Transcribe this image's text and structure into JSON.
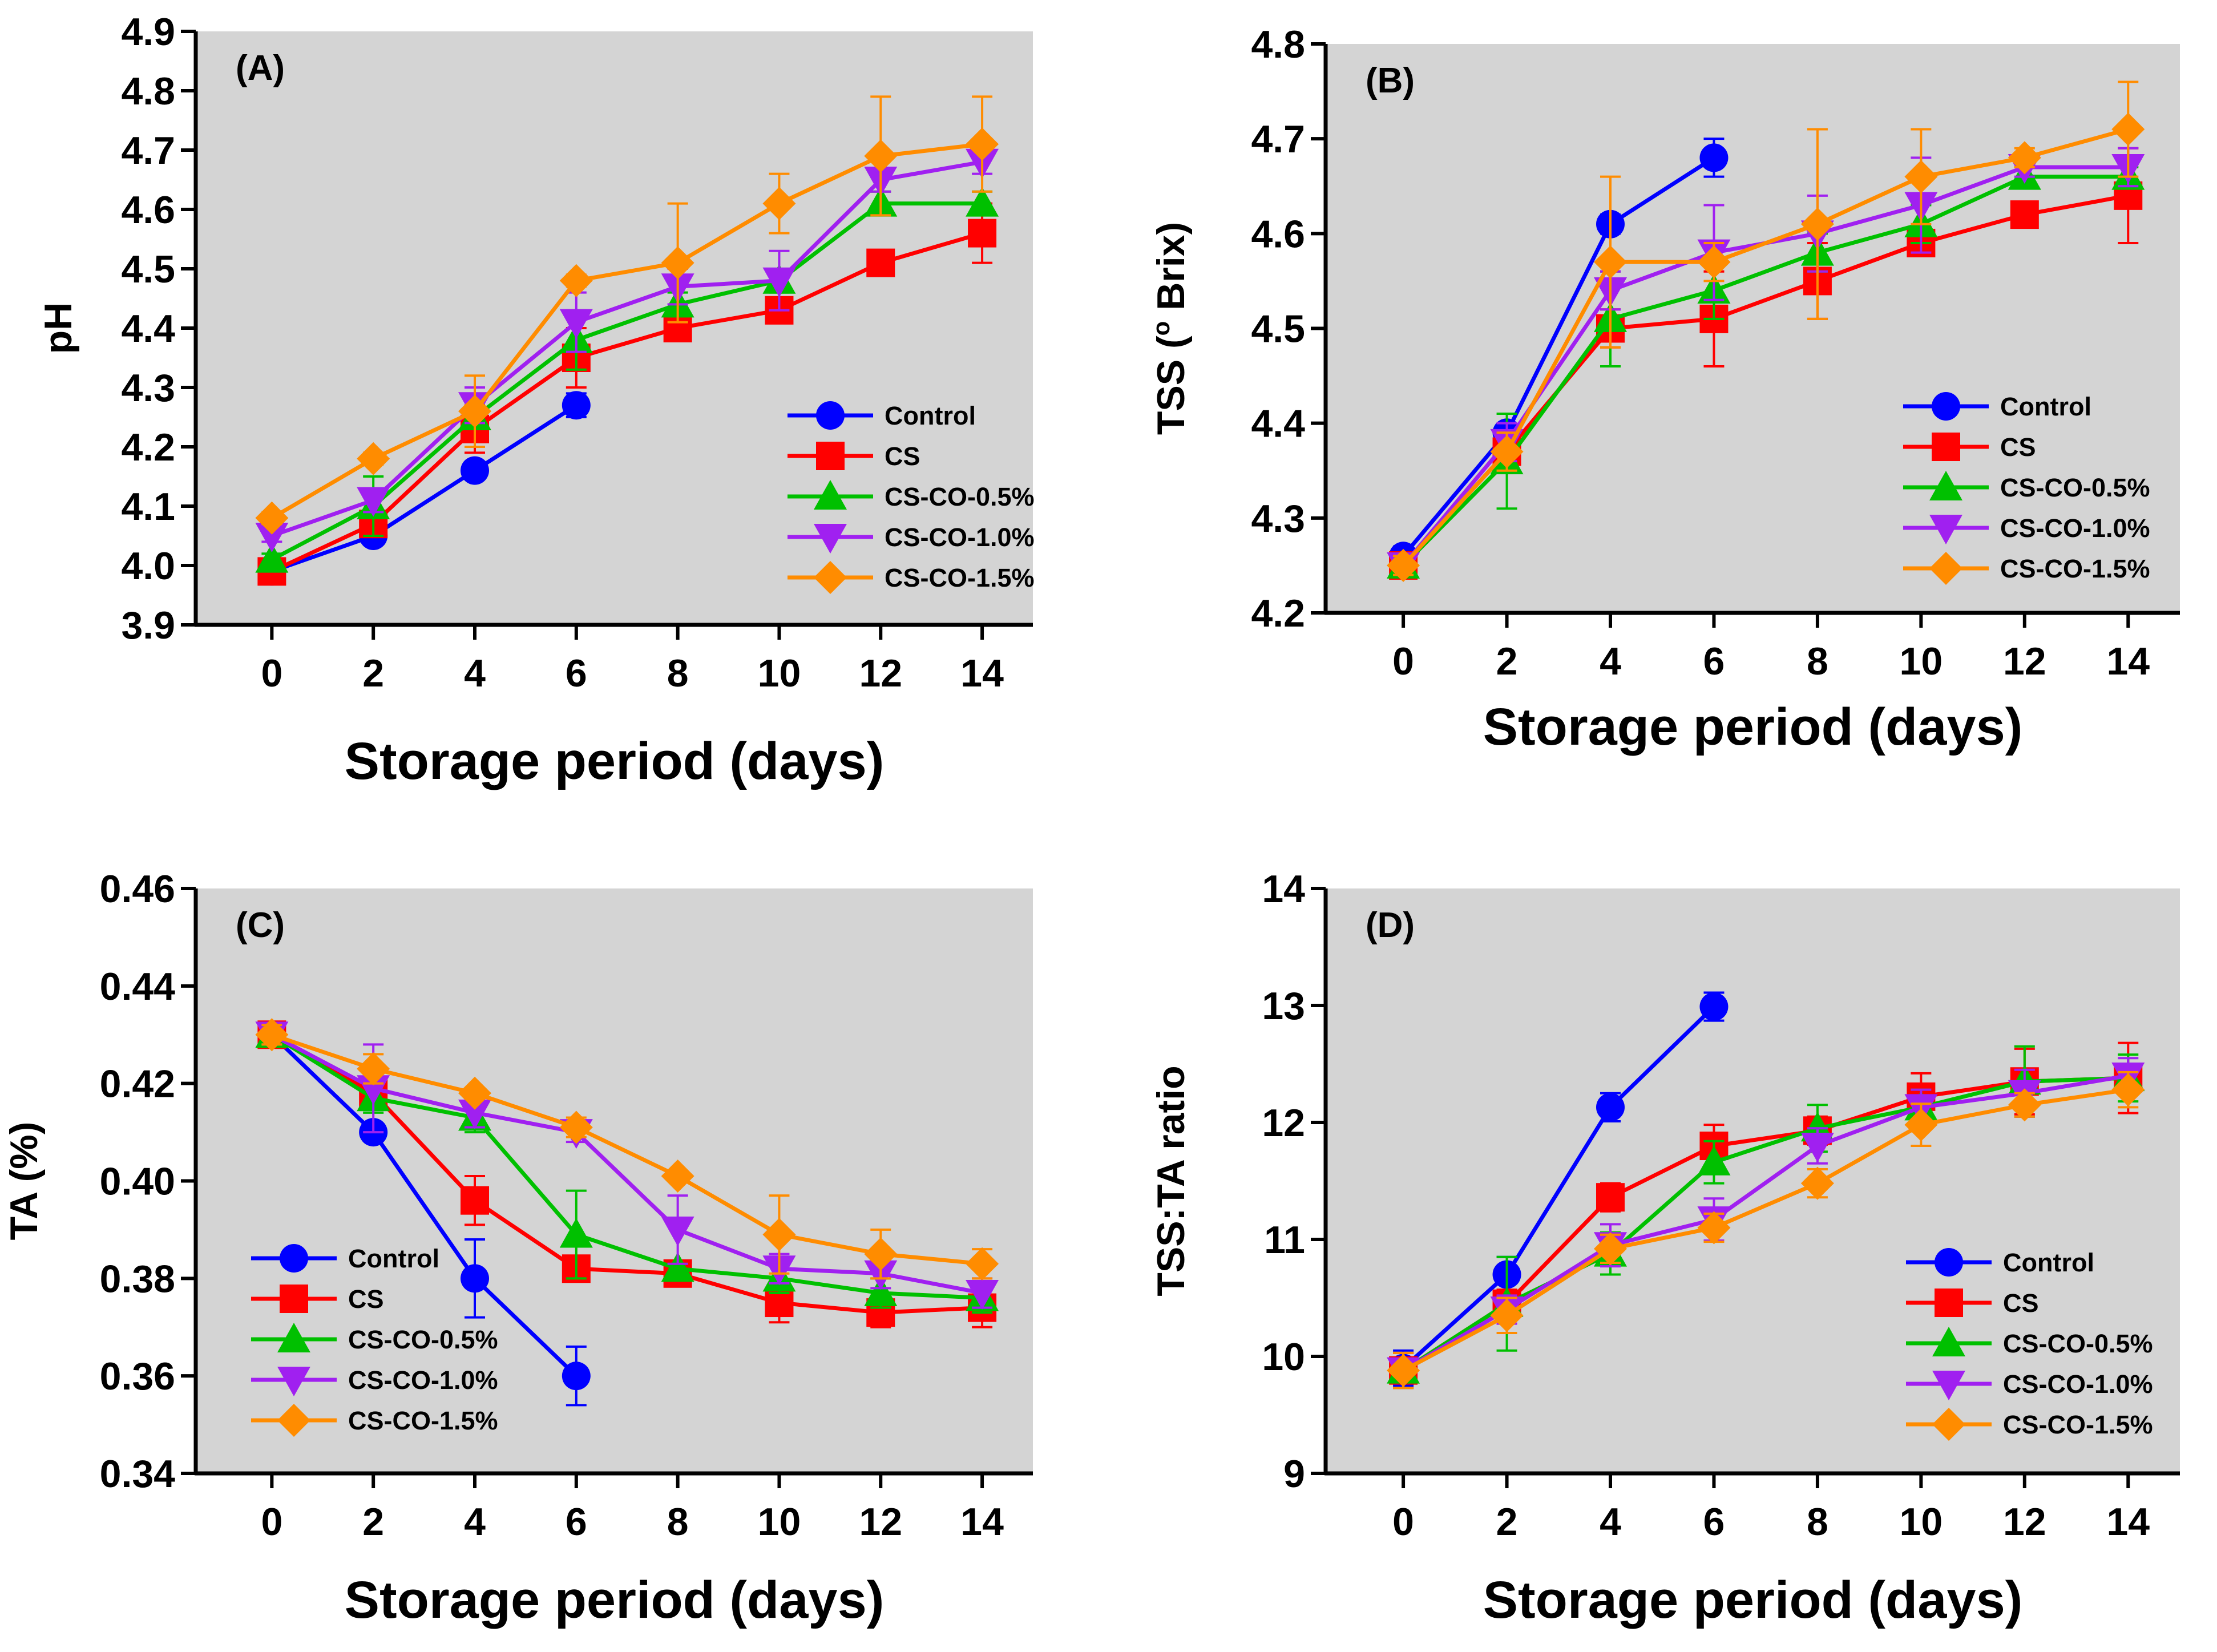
{
  "figure_title": "",
  "chart_data": [
    {
      "type": "line",
      "panel_label": "(A)",
      "title": "",
      "xlabel": "Storage period (days)",
      "ylabel": "pH",
      "ylabel_sup": "",
      "ylabel_suffix": "",
      "xlim": [
        -1.5,
        15
      ],
      "ylim": [
        3.9,
        4.9
      ],
      "xticks": [
        0,
        2,
        4,
        6,
        8,
        10,
        12,
        14
      ],
      "xtick_labels": [
        "0",
        "2",
        "4",
        "6",
        "8",
        "10",
        "12",
        "14"
      ],
      "yticks": [
        3.9,
        4.0,
        4.1,
        4.2,
        4.3,
        4.4,
        4.5,
        4.6,
        4.7,
        4.8,
        4.9
      ],
      "ytick_labels": [
        "3.9",
        "4.0",
        "4.1",
        "4.2",
        "4.3",
        "4.4",
        "4.5",
        "4.6",
        "4.7",
        "4.8",
        "4.9"
      ],
      "grid": false,
      "background": "#d4d4d4",
      "legend_position": "lower-right",
      "series": [
        {
          "name": "Control",
          "color": "#0000ff",
          "marker": "circle",
          "x": [
            0,
            2,
            4,
            6
          ],
          "values": [
            3.99,
            4.05,
            4.16,
            4.27
          ],
          "errors": [
            0.01,
            0.01,
            0.01,
            0.02
          ]
        },
        {
          "name": "CS",
          "color": "#ff0000",
          "marker": "square",
          "x": [
            0,
            2,
            4,
            6,
            8,
            10,
            12,
            14
          ],
          "values": [
            3.99,
            4.07,
            4.23,
            4.35,
            4.4,
            4.43,
            4.51,
            4.56
          ],
          "errors": [
            0.01,
            0.02,
            0.04,
            0.05,
            0.01,
            0.01,
            0.01,
            0.05
          ]
        },
        {
          "name": "CS-CO-0.5%",
          "color": "#00c000",
          "marker": "triangle-up",
          "x": [
            0,
            2,
            4,
            6,
            8,
            10,
            12,
            14
          ],
          "values": [
            4.01,
            4.1,
            4.25,
            4.38,
            4.44,
            4.48,
            4.61,
            4.61
          ],
          "errors": [
            0.01,
            0.05,
            0.05,
            0.05,
            0.02,
            0.02,
            0.02,
            0.02
          ]
        },
        {
          "name": "CS-CO-1.0%",
          "color": "#a020f0",
          "marker": "triangle-down",
          "x": [
            0,
            2,
            4,
            6,
            8,
            10,
            12,
            14
          ],
          "values": [
            4.05,
            4.11,
            4.27,
            4.41,
            4.47,
            4.48,
            4.65,
            4.68
          ],
          "errors": [
            0.01,
            0.02,
            0.03,
            0.05,
            0.03,
            0.05,
            0.02,
            0.02
          ]
        },
        {
          "name": "CS-CO-1.5%",
          "color": "#ff8c00",
          "marker": "diamond",
          "x": [
            0,
            2,
            4,
            6,
            8,
            10,
            12,
            14
          ],
          "values": [
            4.08,
            4.18,
            4.26,
            4.48,
            4.51,
            4.61,
            4.69,
            4.71
          ],
          "errors": [
            0.01,
            0.01,
            0.06,
            0.01,
            0.1,
            0.05,
            0.1,
            0.08
          ]
        }
      ]
    },
    {
      "type": "line",
      "panel_label": "(B)",
      "title": "",
      "xlabel": "Storage period (days)",
      "ylabel": "TSS (",
      "ylabel_sup": "o",
      "ylabel_suffix": " Brix)",
      "xlim": [
        -1.5,
        15
      ],
      "ylim": [
        4.2,
        4.8
      ],
      "xticks": [
        0,
        2,
        4,
        6,
        8,
        10,
        12,
        14
      ],
      "xtick_labels": [
        "0",
        "2",
        "4",
        "6",
        "8",
        "10",
        "12",
        "14"
      ],
      "yticks": [
        4.2,
        4.3,
        4.4,
        4.5,
        4.6,
        4.7,
        4.8
      ],
      "ytick_labels": [
        "4.2",
        "4.3",
        "4.4",
        "4.5",
        "4.6",
        "4.7",
        "4.8"
      ],
      "grid": false,
      "background": "#d4d4d4",
      "legend_position": "lower-right",
      "series": [
        {
          "name": "Control",
          "color": "#0000ff",
          "marker": "circle",
          "x": [
            0,
            2,
            4,
            6
          ],
          "values": [
            4.26,
            4.39,
            4.61,
            4.68
          ],
          "errors": [
            0.01,
            0.01,
            0.01,
            0.02
          ]
        },
        {
          "name": "CS",
          "color": "#ff0000",
          "marker": "square",
          "x": [
            0,
            2,
            4,
            6,
            8,
            10,
            12,
            14
          ],
          "values": [
            4.25,
            4.37,
            4.5,
            4.51,
            4.55,
            4.59,
            4.62,
            4.64
          ],
          "errors": [
            0.01,
            0.02,
            0.02,
            0.05,
            0.04,
            0.01,
            0.01,
            0.05
          ]
        },
        {
          "name": "CS-CO-0.5%",
          "color": "#00c000",
          "marker": "triangle-up",
          "x": [
            0,
            2,
            4,
            6,
            8,
            10,
            12,
            14
          ],
          "values": [
            4.25,
            4.36,
            4.51,
            4.54,
            4.58,
            4.61,
            4.66,
            4.66
          ],
          "errors": [
            0.01,
            0.05,
            0.05,
            0.03,
            0.02,
            0.02,
            0.01,
            0.01
          ]
        },
        {
          "name": "CS-CO-1.0%",
          "color": "#a020f0",
          "marker": "triangle-down",
          "x": [
            0,
            2,
            4,
            6,
            8,
            10,
            12,
            14
          ],
          "values": [
            4.25,
            4.38,
            4.54,
            4.58,
            4.6,
            4.63,
            4.67,
            4.67
          ],
          "errors": [
            0.01,
            0.02,
            0.02,
            0.05,
            0.04,
            0.05,
            0.01,
            0.02
          ]
        },
        {
          "name": "CS-CO-1.5%",
          "color": "#ff8c00",
          "marker": "diamond",
          "x": [
            0,
            2,
            4,
            6,
            8,
            10,
            12,
            14
          ],
          "values": [
            4.25,
            4.37,
            4.57,
            4.57,
            4.61,
            4.66,
            4.68,
            4.71
          ],
          "errors": [
            0.01,
            0.02,
            0.09,
            0.02,
            0.1,
            0.05,
            0.01,
            0.05
          ]
        }
      ]
    },
    {
      "type": "line",
      "panel_label": "(C)",
      "title": "",
      "xlabel": "Storage period (days)",
      "ylabel": "TA (%)",
      "ylabel_sup": "",
      "ylabel_suffix": "",
      "xlim": [
        -1.5,
        15
      ],
      "ylim": [
        0.34,
        0.46
      ],
      "xticks": [
        0,
        2,
        4,
        6,
        8,
        10,
        12,
        14
      ],
      "xtick_labels": [
        "0",
        "2",
        "4",
        "6",
        "8",
        "10",
        "12",
        "14"
      ],
      "yticks": [
        0.34,
        0.36,
        0.38,
        0.4,
        0.42,
        0.44,
        0.46
      ],
      "ytick_labels": [
        "0.34",
        "0.36",
        "0.38",
        "0.40",
        "0.42",
        "0.44",
        "0.46"
      ],
      "grid": false,
      "background": "#d4d4d4",
      "legend_position": "lower-left",
      "series": [
        {
          "name": "Control",
          "color": "#0000ff",
          "marker": "circle",
          "x": [
            0,
            2,
            4,
            6
          ],
          "values": [
            0.43,
            0.41,
            0.38,
            0.36
          ],
          "errors": [
            0.002,
            0.001,
            0.008,
            0.006
          ]
        },
        {
          "name": "CS",
          "color": "#ff0000",
          "marker": "square",
          "x": [
            0,
            2,
            4,
            6,
            8,
            10,
            12,
            14
          ],
          "values": [
            0.43,
            0.418,
            0.396,
            0.382,
            0.381,
            0.375,
            0.373,
            0.374
          ],
          "errors": [
            0.002,
            0.003,
            0.005,
            0.001,
            0.001,
            0.004,
            0.003,
            0.004
          ]
        },
        {
          "name": "CS-CO-0.5%",
          "color": "#00c000",
          "marker": "triangle-up",
          "x": [
            0,
            2,
            4,
            6,
            8,
            10,
            12,
            14
          ],
          "values": [
            0.43,
            0.417,
            0.413,
            0.389,
            0.382,
            0.38,
            0.377,
            0.376
          ],
          "errors": [
            0.002,
            0.003,
            0.003,
            0.009,
            0.001,
            0.003,
            0.003,
            0.003
          ]
        },
        {
          "name": "CS-CO-1.0%",
          "color": "#a020f0",
          "marker": "triangle-down",
          "x": [
            0,
            2,
            4,
            6,
            8,
            10,
            12,
            14
          ],
          "values": [
            0.43,
            0.419,
            0.414,
            0.41,
            0.39,
            0.382,
            0.381,
            0.377
          ],
          "errors": [
            0.002,
            0.009,
            0.003,
            0.002,
            0.007,
            0.003,
            0.003,
            0.003
          ]
        },
        {
          "name": "CS-CO-1.5%",
          "color": "#ff8c00",
          "marker": "diamond",
          "x": [
            0,
            2,
            4,
            6,
            8,
            10,
            12,
            14
          ],
          "values": [
            0.43,
            0.423,
            0.418,
            0.411,
            0.401,
            0.389,
            0.385,
            0.383
          ],
          "errors": [
            0.002,
            0.003,
            0.001,
            0.002,
            0.001,
            0.008,
            0.005,
            0.003
          ]
        }
      ]
    },
    {
      "type": "line",
      "panel_label": "(D)",
      "title": "",
      "xlabel": "Storage period (days)",
      "ylabel": "TSS:TA ratio",
      "ylabel_sup": "",
      "ylabel_suffix": "",
      "xlim": [
        -1.5,
        15
      ],
      "ylim": [
        9,
        14
      ],
      "xticks": [
        0,
        2,
        4,
        6,
        8,
        10,
        12,
        14
      ],
      "xtick_labels": [
        "0",
        "2",
        "4",
        "6",
        "8",
        "10",
        "12",
        "14"
      ],
      "yticks": [
        9,
        10,
        11,
        12,
        13,
        14
      ],
      "ytick_labels": [
        "9",
        "10",
        "11",
        "12",
        "13",
        "14"
      ],
      "grid": false,
      "background": "#d4d4d4",
      "legend_position": "lower-right",
      "series": [
        {
          "name": "Control",
          "color": "#0000ff",
          "marker": "circle",
          "x": [
            0,
            2,
            4,
            6
          ],
          "values": [
            9.9,
            10.7,
            12.13,
            12.99
          ],
          "errors": [
            0.15,
            0.15,
            0.12,
            0.12
          ]
        },
        {
          "name": "CS",
          "color": "#ff0000",
          "marker": "square",
          "x": [
            0,
            2,
            4,
            6,
            8,
            10,
            12,
            14
          ],
          "values": [
            9.88,
            10.45,
            11.36,
            11.8,
            11.93,
            12.22,
            12.35,
            12.38
          ],
          "errors": [
            0.15,
            0.12,
            0.12,
            0.18,
            0.12,
            0.2,
            0.28,
            0.3
          ]
        },
        {
          "name": "CS-CO-0.5%",
          "color": "#00c000",
          "marker": "triangle-up",
          "x": [
            0,
            2,
            4,
            6,
            8,
            10,
            12,
            14
          ],
          "values": [
            9.88,
            10.45,
            10.88,
            11.66,
            11.95,
            12.13,
            12.35,
            12.38
          ],
          "errors": [
            0.15,
            0.4,
            0.18,
            0.18,
            0.2,
            0.15,
            0.3,
            0.2
          ]
        },
        {
          "name": "CS-CO-1.0%",
          "color": "#a020f0",
          "marker": "triangle-down",
          "x": [
            0,
            2,
            4,
            6,
            8,
            10,
            12,
            14
          ],
          "values": [
            9.88,
            10.4,
            10.95,
            11.17,
            11.8,
            12.13,
            12.25,
            12.4
          ],
          "errors": [
            0.15,
            0.12,
            0.18,
            0.18,
            0.15,
            0.15,
            0.2,
            0.15
          ]
        },
        {
          "name": "CS-CO-1.5%",
          "color": "#ff8c00",
          "marker": "diamond",
          "x": [
            0,
            2,
            4,
            6,
            8,
            10,
            12,
            14
          ],
          "values": [
            9.88,
            10.35,
            10.92,
            11.1,
            11.48,
            11.98,
            12.15,
            12.28
          ],
          "errors": [
            0.15,
            0.15,
            0.12,
            0.12,
            0.12,
            0.18,
            0.1,
            0.15
          ]
        }
      ]
    }
  ]
}
